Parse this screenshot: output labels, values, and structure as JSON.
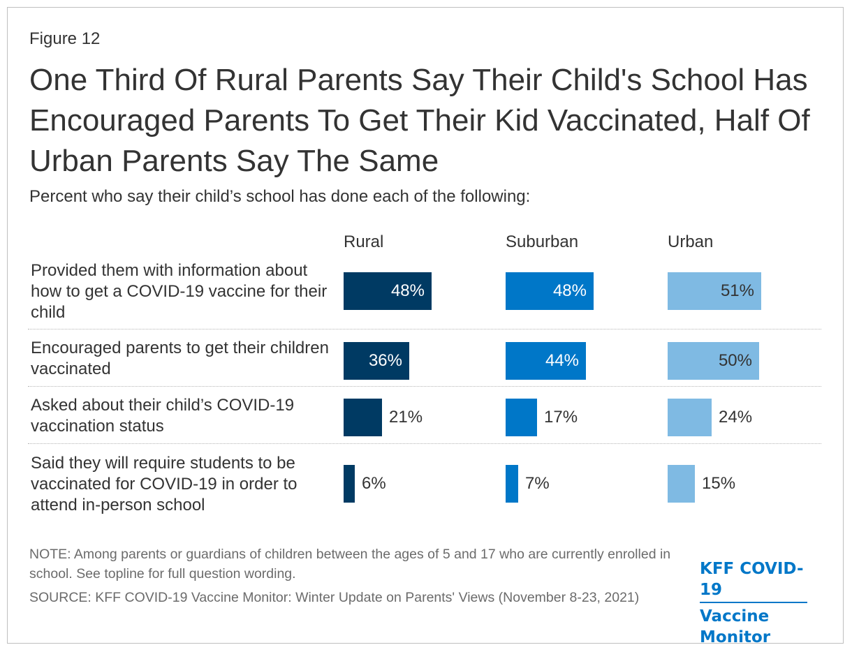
{
  "figure_label": "Figure 12",
  "title": "One Third Of Rural Parents Say Their Child's School Has Encouraged Parents To Get Their Kid Vaccinated, Half Of Urban Parents Say The Same",
  "subtitle": "Percent who say their child’s school has done each of the following:",
  "note": "NOTE: Among parents or guardians of children between the ages of 5 and 17 who are currently enrolled in school. See topline for full question wording.",
  "source": "SOURCE: KFF COVID-19 Vaccine Monitor: Winter Update on Parents' Views (November 8-23, 2021)",
  "logo": {
    "line1": "KFF COVID-19",
    "line2": "Vaccine Monitor"
  },
  "colors": {
    "rural": "#003a63",
    "suburban": "#0077c8",
    "urban": "#7fbae3"
  },
  "chart_data": {
    "type": "bar",
    "orientation": "horizontal",
    "categories": [
      "Provided them with information about how to get a COVID-19 vaccine for their child",
      "Encouraged parents to get their children vaccinated",
      "Asked about their child’s COVID-19 vaccination status",
      "Said they will require students to be vaccinated for COVID-19 in order to attend in-person school"
    ],
    "series": [
      {
        "name": "Rural",
        "values": [
          48,
          36,
          21,
          6
        ]
      },
      {
        "name": "Suburban",
        "values": [
          48,
          44,
          17,
          7
        ]
      },
      {
        "name": "Urban",
        "values": [
          51,
          50,
          24,
          15
        ]
      }
    ],
    "unit": "%",
    "xlim": [
      0,
      100
    ],
    "title": "One Third Of Rural Parents Say Their Child's School Has Encouraged Parents To Get Their Kid Vaccinated, Half Of Urban Parents Say The Same",
    "xlabel": "",
    "ylabel": ""
  }
}
